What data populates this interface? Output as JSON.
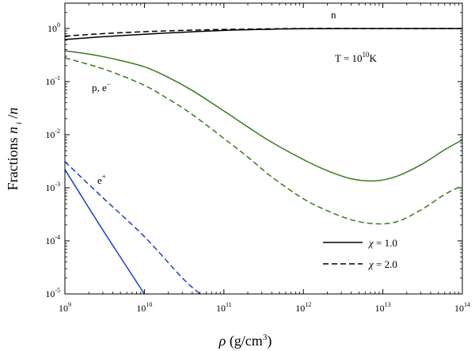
{
  "chart_data": {
    "type": "line",
    "title": "",
    "xlabel": "ρ (g/cm³)",
    "ylabel": "Fractions n_i /n",
    "xscale": "log",
    "yscale": "log",
    "xlim": [
      1000000000.0,
      100000000000000.0
    ],
    "ylim": [
      1e-05,
      3
    ],
    "x_ticks": [
      {
        "exp": 9,
        "label": "10",
        "sup": "9"
      },
      {
        "exp": 10,
        "label": "10",
        "sup": "10"
      },
      {
        "exp": 11,
        "label": "10",
        "sup": "11"
      },
      {
        "exp": 12,
        "label": "10",
        "sup": "12"
      },
      {
        "exp": 13,
        "label": "10",
        "sup": "13"
      },
      {
        "exp": 14,
        "label": "10",
        "sup": "14"
      }
    ],
    "y_ticks": [
      {
        "exp": -5,
        "label": "10",
        "sup": "-5"
      },
      {
        "exp": -4,
        "label": "10",
        "sup": "-4"
      },
      {
        "exp": -3,
        "label": "10",
        "sup": "-3"
      },
      {
        "exp": -2,
        "label": "10",
        "sup": "-2"
      },
      {
        "exp": -1,
        "label": "10",
        "sup": "-1"
      },
      {
        "exp": 0,
        "label": "10",
        "sup": "0"
      }
    ],
    "annotations": {
      "n": "n",
      "pe_main": "p, e",
      "pe_sup": "−",
      "eplus_main": "e",
      "eplus_sup": "+",
      "temp_main": "T = 10",
      "temp_sup": "10",
      "temp_unit": "K"
    },
    "legend": {
      "position": "bottom-right",
      "entries": [
        {
          "symbol": "χ",
          "label": " = 1.0",
          "style": "solid"
        },
        {
          "symbol": "χ",
          "label": " = 2.0",
          "style": "dashed"
        }
      ]
    },
    "colors": {
      "neutron": "#000000",
      "proton": "#3a7a1e",
      "positron": "#1c3fcf"
    },
    "series": [
      {
        "name": "n, χ=1.0",
        "style": "solid",
        "color": "#000000",
        "x": [
          1000000000.0,
          3000000000.0,
          10000000000.0,
          30000000000.0,
          100000000000.0,
          300000000000.0,
          1000000000000.0,
          10000000000000.0,
          100000000000000.0
        ],
        "y": [
          0.62,
          0.7,
          0.78,
          0.85,
          0.92,
          0.96,
          0.99,
          1.0,
          1.0
        ]
      },
      {
        "name": "n, χ=2.0",
        "style": "dashed",
        "color": "#000000",
        "x": [
          1000000000.0,
          3000000000.0,
          10000000000.0,
          30000000000.0,
          100000000000.0,
          300000000000.0,
          1000000000000.0,
          10000000000000.0,
          100000000000000.0
        ],
        "y": [
          0.72,
          0.8,
          0.87,
          0.92,
          0.96,
          0.98,
          1.0,
          1.0,
          1.0
        ]
      },
      {
        "name": "p, e−, χ=1.0",
        "style": "solid",
        "color": "#3a7a1e",
        "x": [
          1000000000.0,
          2000000000.0,
          4000000000.0,
          10000000000.0,
          20000000000.0,
          40000000000.0,
          100000000000.0,
          200000000000.0,
          400000000000.0,
          1000000000000.0,
          2000000000000.0,
          4000000000000.0,
          8000000000000.0,
          15000000000000.0,
          30000000000000.0,
          60000000000000.0,
          100000000000000.0
        ],
        "y": [
          0.38,
          0.33,
          0.27,
          0.19,
          0.12,
          0.068,
          0.028,
          0.014,
          0.0072,
          0.0034,
          0.0021,
          0.00148,
          0.00135,
          0.00165,
          0.0027,
          0.0052,
          0.008
        ]
      },
      {
        "name": "p, e−, χ=2.0",
        "style": "dashed",
        "color": "#3a7a1e",
        "x": [
          1000000000.0,
          2000000000.0,
          4000000000.0,
          10000000000.0,
          20000000000.0,
          40000000000.0,
          100000000000.0,
          200000000000.0,
          400000000000.0,
          1000000000000.0,
          2000000000000.0,
          4000000000000.0,
          8000000000000.0,
          15000000000000.0,
          30000000000000.0,
          60000000000000.0,
          100000000000000.0
        ],
        "y": [
          0.28,
          0.21,
          0.15,
          0.085,
          0.047,
          0.024,
          0.0085,
          0.0038,
          0.0016,
          0.00062,
          0.00037,
          0.00025,
          0.00021,
          0.00023,
          0.00038,
          0.00075,
          0.0011
        ]
      },
      {
        "name": "e+, χ=1.0",
        "style": "solid",
        "color": "#1c3fcf",
        "x": [
          1000000000.0,
          3000000000.0,
          10000000000.0
        ],
        "y": [
          0.0022,
          0.00016,
          1e-05
        ]
      },
      {
        "name": "e+, χ=2.0",
        "style": "dashed",
        "color": "#1c3fcf",
        "x": [
          1000000000.0,
          3000000000.0,
          10000000000.0,
          30000000000.0,
          50000000000.0
        ],
        "y": [
          0.0031,
          0.00065,
          0.00012,
          2e-05,
          1e-05
        ]
      }
    ]
  }
}
